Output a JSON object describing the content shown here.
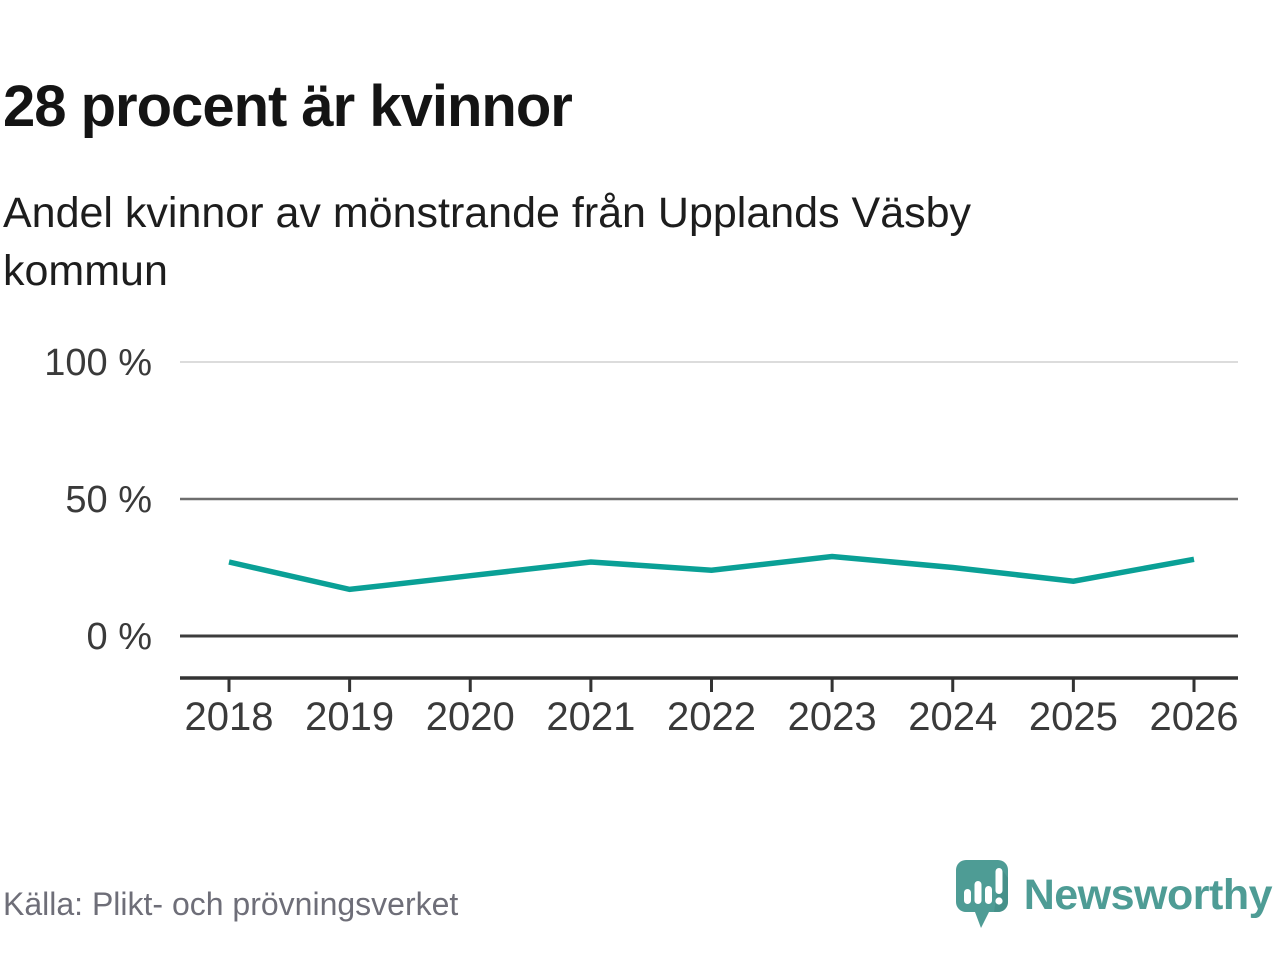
{
  "header": {
    "title": "28 procent är kvinnor",
    "subtitle": "Andel kvinnor av mönstrande från Upplands Väsby kommun",
    "subtitle_lines": [
      "Andel kvinnor av mönstrande från Upplands Väsby",
      "kommun"
    ]
  },
  "chart_data": {
    "type": "line",
    "title": "28 procent är kvinnor",
    "subtitle": "Andel kvinnor av mönstrande från Upplands Väsby kommun",
    "categories": [
      "2018",
      "2019",
      "2020",
      "2021",
      "2022",
      "2023",
      "2024",
      "2025",
      "2026"
    ],
    "values": [
      27,
      17,
      22,
      27,
      24,
      29,
      25,
      20,
      28
    ],
    "unit": "%",
    "ylim": [
      0,
      100
    ],
    "yticks": [
      {
        "value": 100,
        "label": "100 %"
      },
      {
        "value": 50,
        "label": "50 %"
      },
      {
        "value": 0,
        "label": "0 %"
      }
    ],
    "grid": true,
    "legend": "none",
    "style": {
      "line_color": "#0aa096",
      "grid_top_color": "#dcdcdc",
      "grid_mid_color": "#6e6e6e",
      "grid_zero_color": "#3c3c3c",
      "axis_color": "#333333",
      "tick_label_color": "#3a3a3a"
    }
  },
  "footer": {
    "source": "Källa: Plikt- och prövningsverket",
    "brand_name": "Newsworthy",
    "brand_color": "#4e9c95"
  }
}
